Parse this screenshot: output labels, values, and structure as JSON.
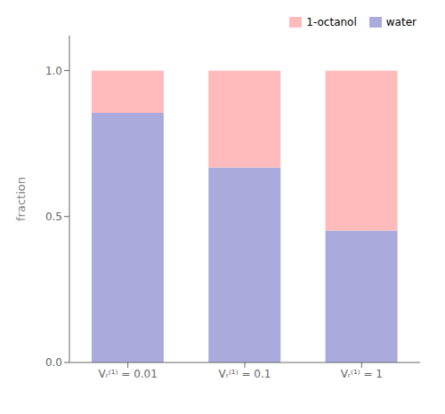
{
  "chart_data": {
    "type": "bar",
    "stacked": true,
    "categories": [
      "Vᵣ⁽¹⁾ = 0.01",
      "Vᵣ⁽¹⁾ = 0.1",
      "Vᵣ⁽¹⁾ = 1"
    ],
    "series": [
      {
        "name": "water",
        "color": "#aaaadd",
        "values": [
          0.855,
          0.668,
          0.452
        ]
      },
      {
        "name": "1-octanol",
        "color": "#ffbbbb",
        "values": [
          0.145,
          0.332,
          0.548
        ]
      }
    ],
    "ylabel": "fraction",
    "ylim": [
      0,
      1.12
    ],
    "yticks": [
      {
        "value": 0.0,
        "label": "0.0"
      },
      {
        "value": 0.5,
        "label": "0.5"
      },
      {
        "value": 1.0,
        "label": "1.0"
      }
    ],
    "grid": false,
    "legend": "upper right"
  }
}
